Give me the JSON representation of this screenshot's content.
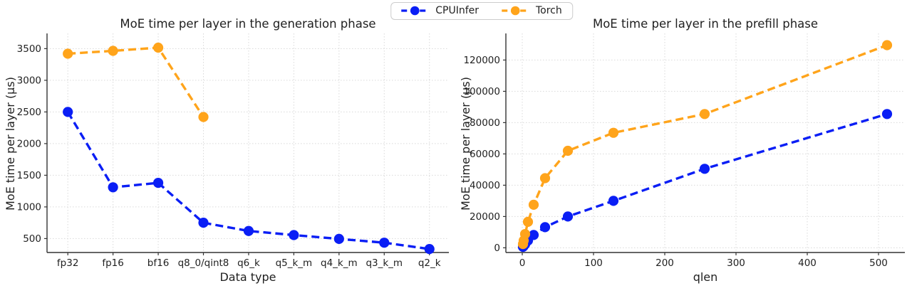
{
  "figure": {
    "background": "#ffffff",
    "text_color": "#1f1f1f",
    "grid_color": "#d9d9d9",
    "spine_color": "#333333"
  },
  "legend": {
    "position": "top-center",
    "items": [
      {
        "label": "CPUInfer",
        "color": "#0a1ef5"
      },
      {
        "label": "Torch",
        "color": "#ffa41b"
      }
    ]
  },
  "chart_data": [
    {
      "type": "line",
      "title": "MoE time per layer in the generation phase",
      "xlabel": "Data type",
      "ylabel": "MoE time per layer (µs)",
      "categories": [
        "fp32",
        "fp16",
        "bf16",
        "q8_0/qint8",
        "q6_k",
        "q5_k_m",
        "q4_k_m",
        "q3_k_m",
        "q2_k"
      ],
      "series": [
        {
          "name": "CPUInfer",
          "color": "#0a1ef5",
          "values": [
            2500,
            1310,
            1380,
            750,
            620,
            555,
            495,
            435,
            335
          ]
        },
        {
          "name": "Torch",
          "color": "#ffa41b",
          "values": [
            3420,
            3465,
            3515,
            2420,
            null,
            null,
            null,
            null,
            null
          ]
        }
      ],
      "yticks": [
        500,
        1000,
        1500,
        2000,
        2500,
        3000,
        3500
      ],
      "ylim": [
        280,
        3740
      ],
      "xlim": [
        -0.46,
        8.43
      ],
      "grid": true,
      "line_style": "dashed",
      "marker": "circle"
    },
    {
      "type": "line",
      "title": "MoE time per layer in the prefill phase",
      "xlabel": "qlen",
      "ylabel": "MoE time per layer (µs)",
      "x": [
        1,
        2,
        4,
        8,
        16,
        32,
        64,
        128,
        256,
        512
      ],
      "series": [
        {
          "name": "CPUInfer",
          "color": "#0a1ef5",
          "values": [
            600,
            1100,
            2300,
            4600,
            8200,
            13200,
            20000,
            30000,
            50500,
            85500
          ]
        },
        {
          "name": "Torch",
          "color": "#ffa41b",
          "values": [
            2400,
            4600,
            8800,
            16600,
            27500,
            44500,
            62000,
            73500,
            85500,
            129500
          ]
        }
      ],
      "xticks": [
        0,
        100,
        200,
        300,
        400,
        500
      ],
      "yticks": [
        0,
        20000,
        40000,
        60000,
        80000,
        100000,
        120000
      ],
      "xlim": [
        -23,
        537
      ],
      "ylim": [
        -3000,
        137000
      ],
      "grid": true,
      "line_style": "dashed",
      "marker": "circle"
    }
  ]
}
